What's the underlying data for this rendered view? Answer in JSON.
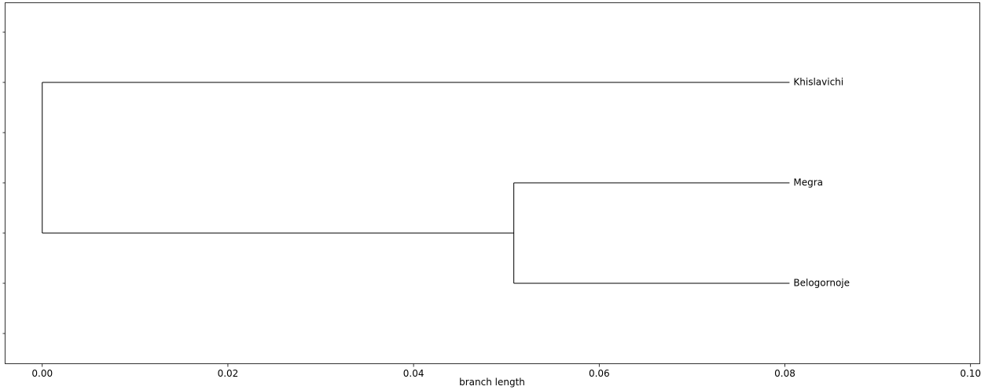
{
  "chart_data": {
    "type": "dendrogram",
    "xlabel": "branch length",
    "xlim": [
      -0.004,
      0.101
    ],
    "x_ticks": [
      "0.00",
      "0.02",
      "0.04",
      "0.06",
      "0.08",
      "0.10"
    ],
    "x_tick_values": [
      0.0,
      0.02,
      0.04,
      0.06,
      0.08,
      0.1
    ],
    "leaves": [
      {
        "name": "Khislavichi",
        "depth": 0.0805
      },
      {
        "name": "Megra",
        "depth": 0.0805
      },
      {
        "name": "Belogornoje",
        "depth": 0.0805
      }
    ],
    "internal_nodes": [
      {
        "name": "root",
        "depth": 0.0,
        "children": [
          "Khislavichi",
          "clade-1"
        ]
      },
      {
        "name": "clade-1",
        "depth": 0.0508,
        "children": [
          "Megra",
          "Belogornoje"
        ]
      }
    ],
    "grid": false,
    "legend": "none"
  }
}
